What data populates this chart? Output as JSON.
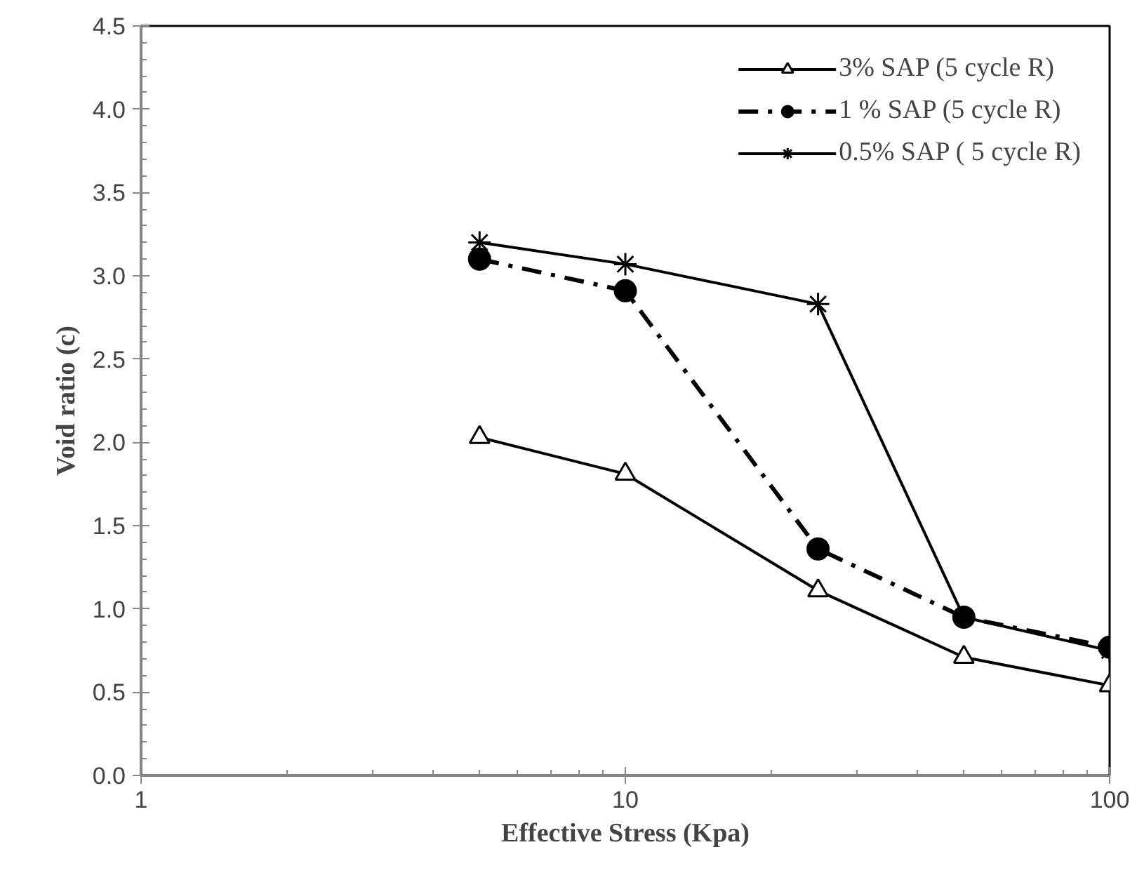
{
  "chart_data": {
    "type": "line",
    "xlabel": "Effective Stress (Kpa)",
    "ylabel": "Void ratio (c)",
    "log": "x",
    "xlim": [
      1,
      100
    ],
    "xticks": [
      1,
      10,
      100
    ],
    "ylim": [
      0,
      4.5
    ],
    "yticks": [
      {
        "value": 0,
        "label": "0.0"
      },
      {
        "value": 0.5,
        "label": "0.5"
      },
      {
        "value": 1,
        "label": "1.0"
      },
      {
        "value": 1.5,
        "label": "1.5"
      },
      {
        "value": 2,
        "label": "2.0"
      },
      {
        "value": 2.5,
        "label": "2.5"
      },
      {
        "value": 3,
        "label": "3.0"
      },
      {
        "value": 3.5,
        "label": "3.5"
      },
      {
        "value": 4,
        "label": "4.0"
      },
      {
        "value": 4.5,
        "label": "4.5"
      }
    ],
    "x": [
      5,
      10,
      25,
      50,
      100
    ],
    "series": [
      {
        "name": "3% SAP (5 cycle R)",
        "color": "#000000",
        "marker": "triangle",
        "line_style": "solid",
        "values": [
          2.03,
          1.81,
          1.11,
          0.71,
          0.54
        ]
      },
      {
        "name": "1 % SAP (5 cycle R)",
        "color": "#000000",
        "marker": "circle",
        "line_style": "dashed",
        "values": [
          3.1,
          2.91,
          1.36,
          0.95,
          0.77
        ]
      },
      {
        "name": "0.5% SAP ( 5 cycle R)",
        "color": "#000000",
        "marker": "cross",
        "line_style": "solid",
        "values": [
          3.2,
          3.07,
          2.83,
          0.95,
          0.75
        ]
      }
    ],
    "grid": false,
    "legend": "top right"
  }
}
